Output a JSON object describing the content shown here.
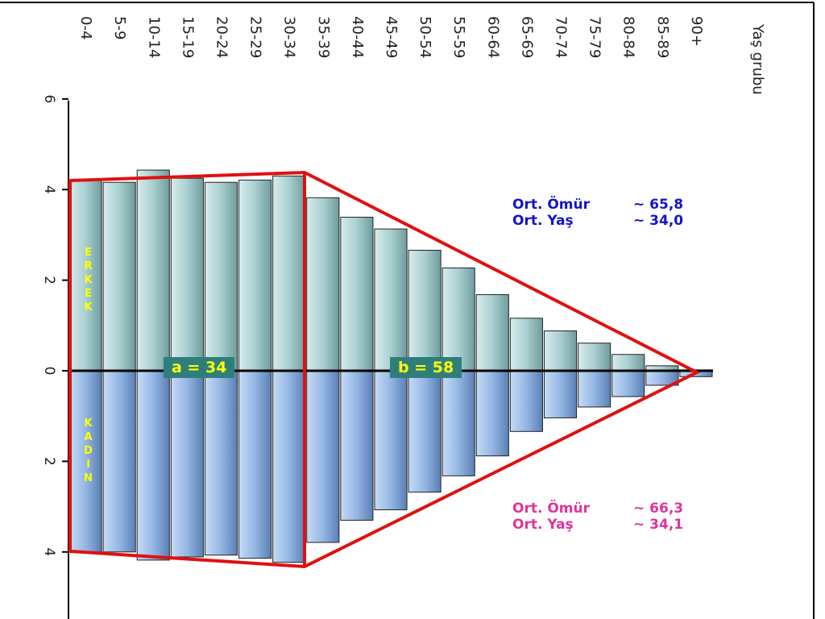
{
  "chart_data": {
    "type": "pyramid",
    "x_label": "Yaş grubu",
    "categories": [
      "0-4",
      "5-9",
      "10-14",
      "15-19",
      "20-24",
      "25-29",
      "30-34",
      "35-39",
      "40-44",
      "45-49",
      "50-54",
      "55-59",
      "60-64",
      "65-69",
      "70-74",
      "75-79",
      "80-84",
      "85-89",
      "90+"
    ],
    "series": [
      {
        "name": "ERKEK",
        "color": "#a9cfd0",
        "values": [
          4.21,
          4.16,
          4.43,
          4.25,
          4.16,
          4.21,
          4.3,
          3.82,
          3.39,
          3.13,
          2.66,
          2.27,
          1.68,
          1.16,
          0.88,
          0.61,
          0.36,
          0.11,
          0.02
        ]
      },
      {
        "name": "KADIN",
        "color": "#94b6e4",
        "values": [
          -4.0,
          -4.0,
          -4.18,
          -4.11,
          -4.07,
          -4.14,
          -4.23,
          -3.79,
          -3.3,
          -3.07,
          -2.68,
          -2.32,
          -1.88,
          -1.34,
          -1.04,
          -0.8,
          -0.57,
          -0.32,
          -0.13
        ]
      }
    ],
    "ylim": [
      -5.5,
      6
    ],
    "yticks": [
      6,
      4,
      2,
      0,
      {
        "value": -2,
        "label": "2"
      },
      {
        "value": -4,
        "label": "4"
      }
    ],
    "annotations": {
      "a": "a = 34",
      "b": "b = 58"
    },
    "male_stats": [
      {
        "label": "Ort. Ömür",
        "value": "~ 65,8"
      },
      {
        "label": "Ort. Yaş",
        "value": "~ 34,0"
      }
    ],
    "female_stats": [
      {
        "label": "Ort. Ömür",
        "value": "~ 66,3"
      },
      {
        "label": "Ort. Yaş",
        "value": "~ 34,1"
      }
    ]
  }
}
